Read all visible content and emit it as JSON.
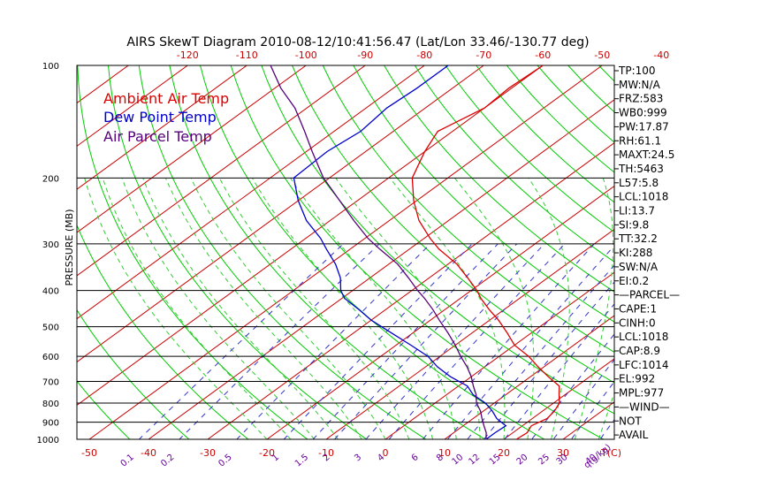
{
  "title": "AIRS SkewT Diagram 2010-08-12/10:41:56.47 (Lat/Lon 33.46/-130.77 deg)",
  "legend": {
    "ambient": "Ambient Air Temp",
    "dewpoint": "Dew Point Temp",
    "parcel": "Air Parcel Temp"
  },
  "colors": {
    "ambient": "#dd0000",
    "dewpoint": "#0000cc",
    "parcel": "#55007a",
    "isotherm": "#cc0000",
    "dry_adiabat": "#00cc00",
    "moist_adiabat": "#33cc33",
    "mixing_ratio": "#3333cc",
    "bottom_temp_labels": "#cc0000",
    "mixing_labels": "#660099",
    "frame": "#000000"
  },
  "y_axis_label": "PRESSURE (MB)",
  "pressure_ticks": [
    "100",
    "200",
    "300",
    "400",
    "500",
    "600",
    "700",
    "800",
    "900",
    "1000"
  ],
  "top_temp_ticks": [
    "-120",
    "-110",
    "-100",
    "-90",
    "-80",
    "-70",
    "-60",
    "-50",
    "-40"
  ],
  "bottom_temp_ticks": [
    "-50",
    "-40",
    "-30",
    "-20",
    "-10",
    "0",
    "10",
    "20",
    "30"
  ],
  "bottom_temp_unit": "T(C)",
  "mixing_ratio_ticks": [
    "0.1",
    "0.2",
    "0.5",
    "1",
    "1.5",
    "2",
    "3",
    "4",
    "6",
    "8",
    "10",
    "12",
    "15",
    "20",
    "25",
    "30",
    "40"
  ],
  "mixing_ratio_unit": "q(g/kg)",
  "indices": [
    "TP:100",
    "MW:N/A",
    "FRZ:583",
    "WB0:999",
    "PW:17.87",
    "RH:61.1",
    "MAXT:24.5",
    "TH:5463",
    "L57:5.8",
    "LCL:1018",
    "LI:13.7",
    "SI:9.8",
    "TT:32.2",
    "KI:288",
    "SW:N/A",
    "EI:0.2",
    "—PARCEL—",
    "CAPE:1",
    "CINH:0",
    "LCL:1018",
    "CAP:8.9",
    "LFC:1014",
    "EL:992",
    "MPL:977",
    "—WIND—",
    "NOT",
    "AVAIL"
  ],
  "chart_data": {
    "type": "line",
    "title": "AIRS SkewT Diagram 2010-08-12/10:41:56.47 (Lat/Lon 33.46/-130.77 deg)",
    "xlabel": "T(C)",
    "ylabel": "PRESSURE (MB)",
    "y_scale": "log",
    "y_range_mb": [
      1000,
      100
    ],
    "series": [
      {
        "name": "Ambient Air Temp",
        "points": [
          {
            "p": 1000,
            "t": 22.1
          },
          {
            "p": 960,
            "t": 22.4
          },
          {
            "p": 920,
            "t": 21.5
          },
          {
            "p": 880,
            "t": 22.5
          },
          {
            "p": 840,
            "t": 22.0
          },
          {
            "p": 800,
            "t": 21.0
          },
          {
            "p": 760,
            "t": 19.0
          },
          {
            "p": 720,
            "t": 17.0
          },
          {
            "p": 680,
            "t": 13.0
          },
          {
            "p": 640,
            "t": 9.0
          },
          {
            "p": 600,
            "t": 5.0
          },
          {
            "p": 560,
            "t": 0.0
          },
          {
            "p": 520,
            "t": -4.0
          },
          {
            "p": 480,
            "t": -8.5
          },
          {
            "p": 450,
            "t": -12.5
          },
          {
            "p": 420,
            "t": -16.5
          },
          {
            "p": 400,
            "t": -19.0
          },
          {
            "p": 370,
            "t": -23.5
          },
          {
            "p": 340,
            "t": -28.5
          },
          {
            "p": 310,
            "t": -35.0
          },
          {
            "p": 290,
            "t": -39.0
          },
          {
            "p": 260,
            "t": -45.0
          },
          {
            "p": 230,
            "t": -50.5
          },
          {
            "p": 200,
            "t": -56.0
          },
          {
            "p": 170,
            "t": -60.0
          },
          {
            "p": 150,
            "t": -62.5
          },
          {
            "p": 130,
            "t": -60.0
          },
          {
            "p": 115,
            "t": -60.5
          },
          {
            "p": 100,
            "t": -60.0
          }
        ]
      },
      {
        "name": "Dew Point Temp",
        "points": [
          {
            "p": 1000,
            "t": 17.0
          },
          {
            "p": 960,
            "t": 17.0
          },
          {
            "p": 920,
            "t": 17.2
          },
          {
            "p": 880,
            "t": 14.0
          },
          {
            "p": 840,
            "t": 11.5
          },
          {
            "p": 800,
            "t": 8.5
          },
          {
            "p": 760,
            "t": 4.5
          },
          {
            "p": 720,
            "t": 1.5
          },
          {
            "p": 680,
            "t": -3.5
          },
          {
            "p": 640,
            "t": -8.0
          },
          {
            "p": 600,
            "t": -12.0
          },
          {
            "p": 560,
            "t": -17.5
          },
          {
            "p": 520,
            "t": -23.5
          },
          {
            "p": 480,
            "t": -30.0
          },
          {
            "p": 450,
            "t": -34.5
          },
          {
            "p": 420,
            "t": -39.5
          },
          {
            "p": 400,
            "t": -42.0
          },
          {
            "p": 370,
            "t": -45.0
          },
          {
            "p": 340,
            "t": -49.0
          },
          {
            "p": 310,
            "t": -54.0
          },
          {
            "p": 290,
            "t": -57.5
          },
          {
            "p": 260,
            "t": -64.0
          },
          {
            "p": 230,
            "t": -70.0
          },
          {
            "p": 200,
            "t": -76.0
          },
          {
            "p": 170,
            "t": -76.5
          },
          {
            "p": 150,
            "t": -75.5
          },
          {
            "p": 130,
            "t": -76.5
          },
          {
            "p": 115,
            "t": -76.0
          },
          {
            "p": 100,
            "t": -76.0
          }
        ]
      },
      {
        "name": "Air Parcel Temp",
        "points": [
          {
            "p": 1000,
            "t": 17.0
          },
          {
            "p": 960,
            "t": 15.5
          },
          {
            "p": 920,
            "t": 13.5
          },
          {
            "p": 880,
            "t": 11.5
          },
          {
            "p": 840,
            "t": 9.5
          },
          {
            "p": 800,
            "t": 7.0
          },
          {
            "p": 760,
            "t": 5.0
          },
          {
            "p": 720,
            "t": 2.5
          },
          {
            "p": 680,
            "t": 0.0
          },
          {
            "p": 640,
            "t": -3.0
          },
          {
            "p": 600,
            "t": -6.5
          },
          {
            "p": 560,
            "t": -10.0
          },
          {
            "p": 520,
            "t": -14.0
          },
          {
            "p": 480,
            "t": -18.5
          },
          {
            "p": 450,
            "t": -22.0
          },
          {
            "p": 420,
            "t": -26.0
          },
          {
            "p": 400,
            "t": -29.0
          },
          {
            "p": 370,
            "t": -33.5
          },
          {
            "p": 340,
            "t": -38.5
          },
          {
            "p": 310,
            "t": -45.0
          },
          {
            "p": 290,
            "t": -49.5
          },
          {
            "p": 260,
            "t": -56.0
          },
          {
            "p": 230,
            "t": -63.0
          },
          {
            "p": 200,
            "t": -71.0
          },
          {
            "p": 170,
            "t": -79.0
          },
          {
            "p": 150,
            "t": -85.0
          },
          {
            "p": 130,
            "t": -92.0
          },
          {
            "p": 115,
            "t": -99.0
          },
          {
            "p": 100,
            "t": -106.0
          }
        ]
      }
    ]
  }
}
